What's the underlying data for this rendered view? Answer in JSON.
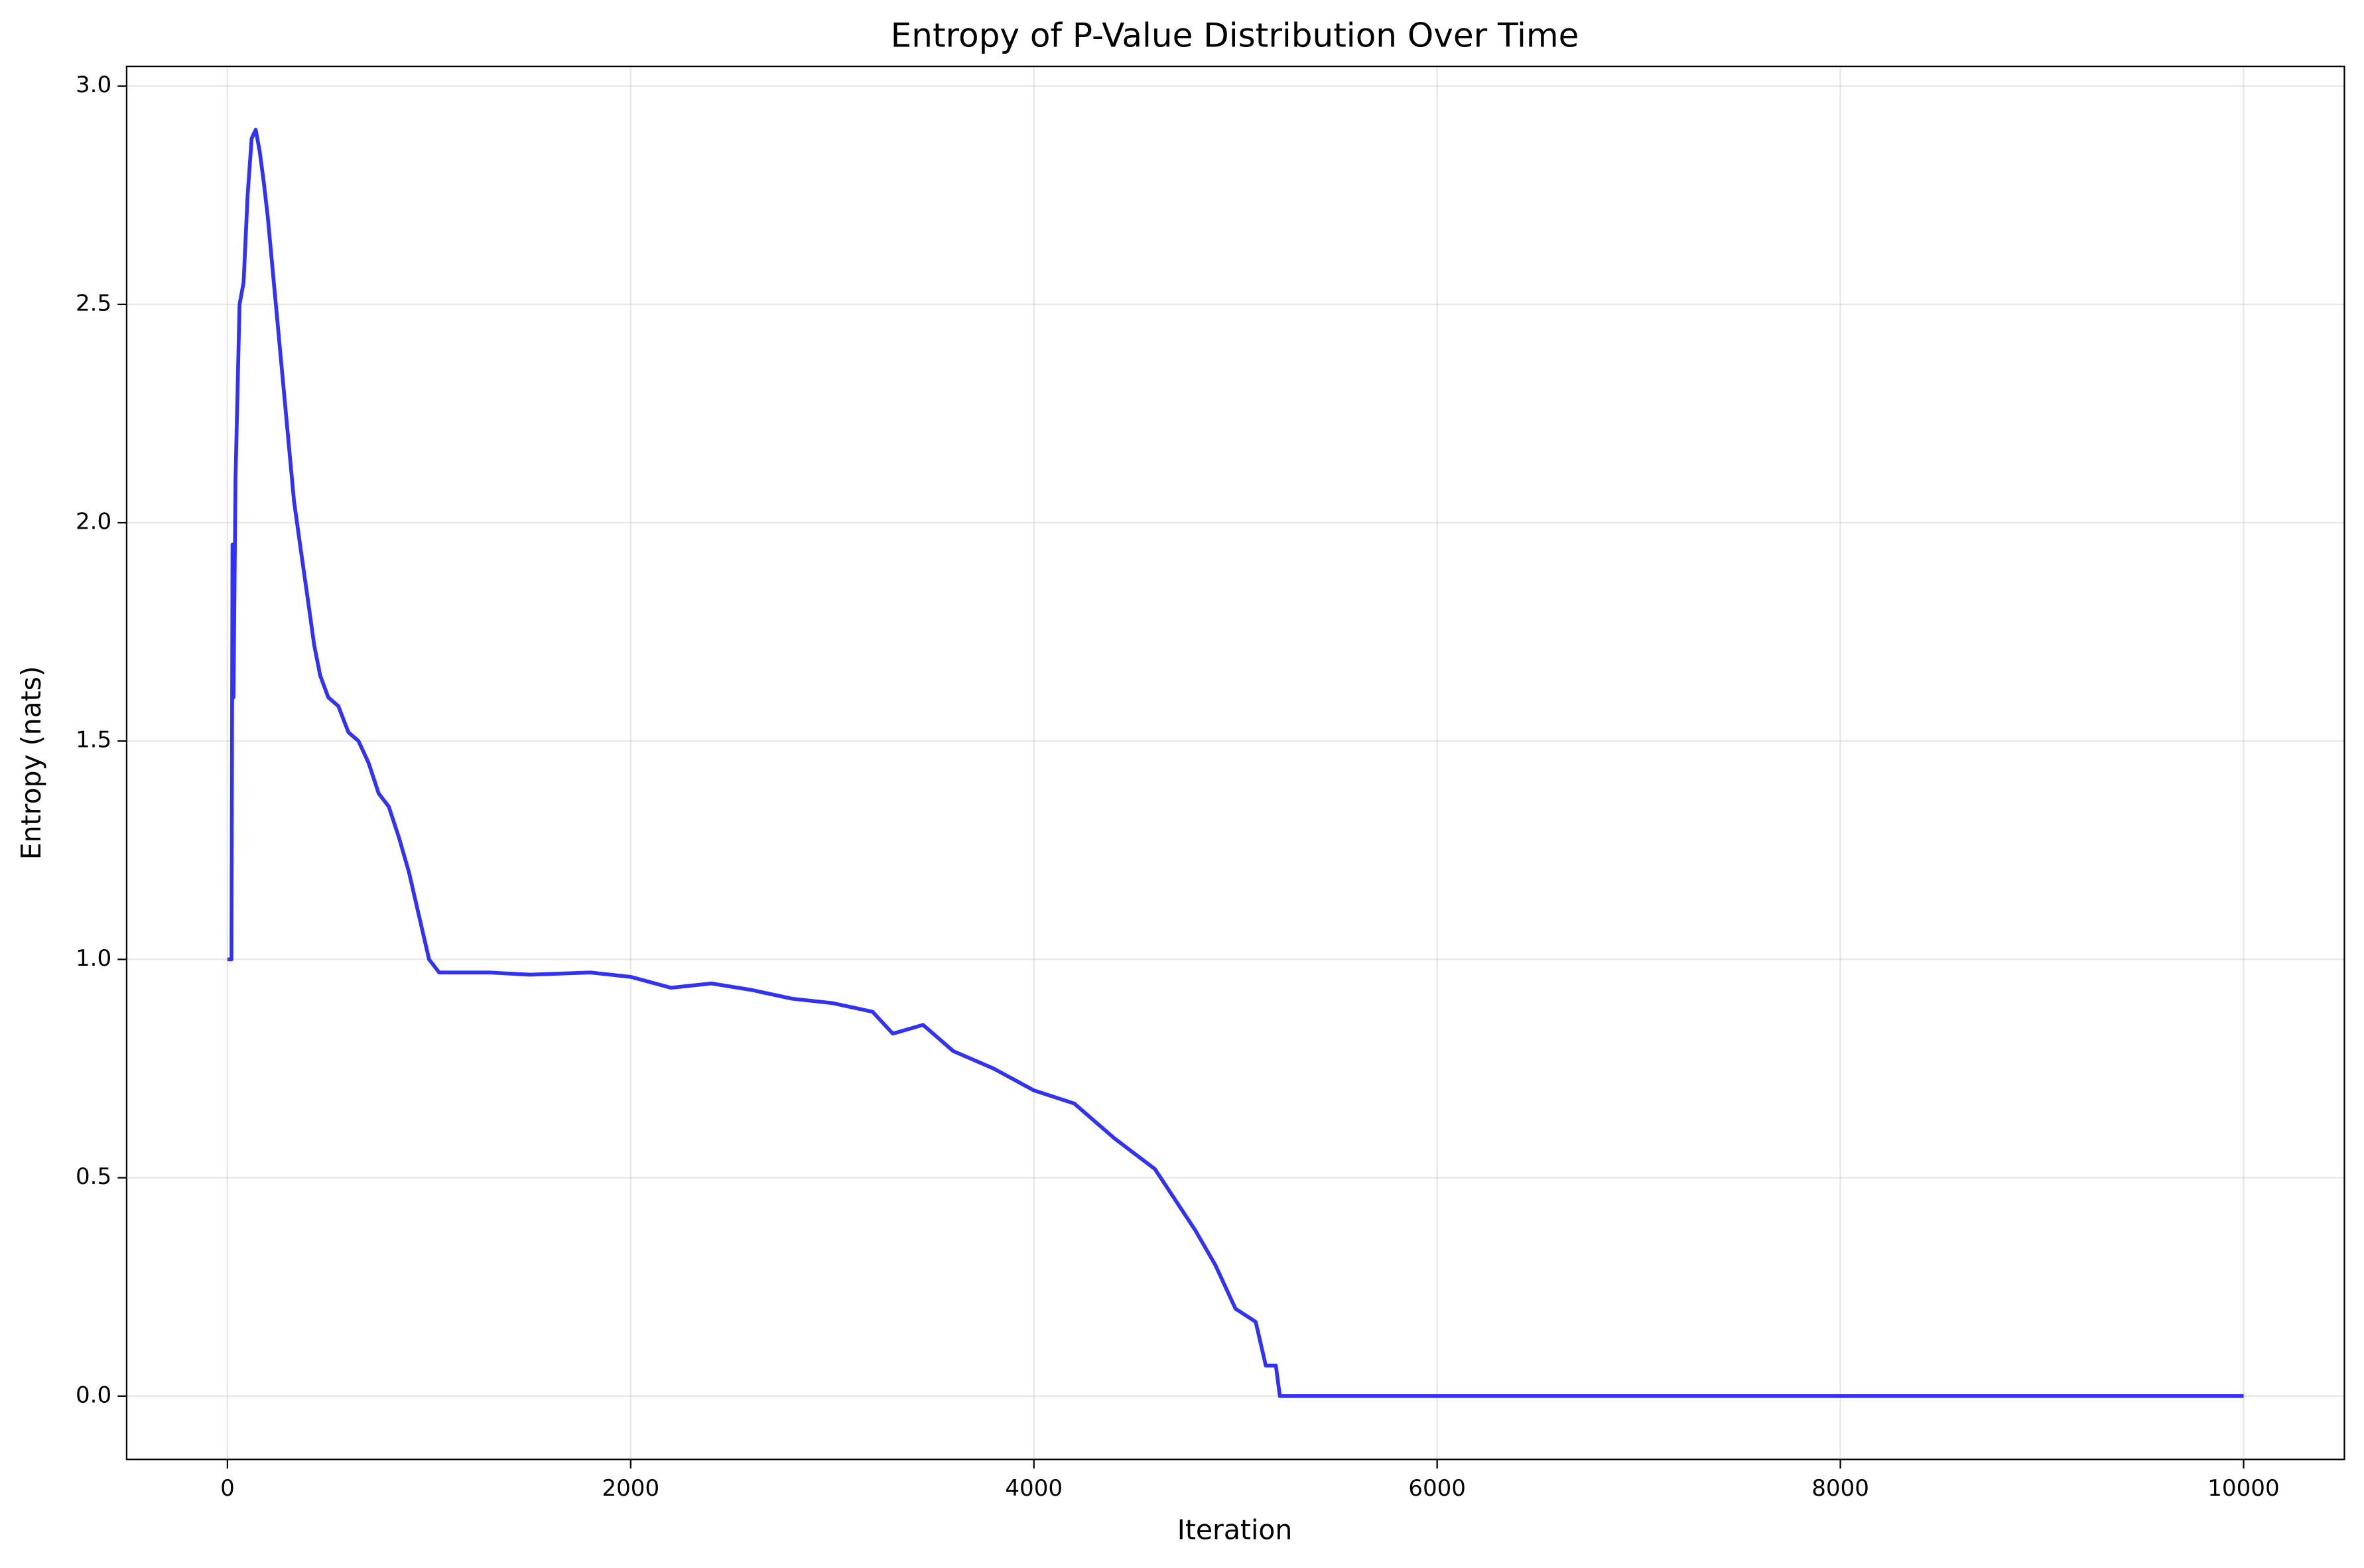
{
  "chart_data": {
    "type": "line",
    "title": "Entropy of P-Value Distribution Over Time",
    "x_label": "Iteration",
    "y_label": "Entropy (nats)",
    "x": [
      0,
      20,
      25,
      30,
      40,
      50,
      60,
      80,
      100,
      120,
      140,
      160,
      180,
      200,
      220,
      250,
      280,
      300,
      330,
      360,
      400,
      430,
      460,
      500,
      550,
      600,
      650,
      700,
      750,
      800,
      850,
      900,
      950,
      1000,
      1050,
      1080,
      1100,
      1300,
      1500,
      1800,
      2000,
      2200,
      2400,
      2600,
      2800,
      3000,
      3200,
      3300,
      3450,
      3600,
      3800,
      4000,
      4200,
      4400,
      4600,
      4700,
      4800,
      4900,
      5000,
      5100,
      5150,
      5200,
      5220,
      6000,
      8000,
      10000
    ],
    "values": [
      1.0,
      1.0,
      1.95,
      1.6,
      2.1,
      2.3,
      2.5,
      2.55,
      2.75,
      2.88,
      2.9,
      2.85,
      2.78,
      2.7,
      2.6,
      2.45,
      2.3,
      2.2,
      2.05,
      1.95,
      1.82,
      1.72,
      1.65,
      1.6,
      1.58,
      1.52,
      1.5,
      1.45,
      1.38,
      1.35,
      1.28,
      1.2,
      1.1,
      1.0,
      0.97,
      0.97,
      0.97,
      0.97,
      0.965,
      0.97,
      0.96,
      0.935,
      0.945,
      0.93,
      0.91,
      0.9,
      0.88,
      0.83,
      0.85,
      0.79,
      0.75,
      0.7,
      0.67,
      0.59,
      0.52,
      0.45,
      0.38,
      0.3,
      0.2,
      0.17,
      0.07,
      0.07,
      0,
      0,
      0,
      0
    ],
    "color": "#3232f4",
    "xlim": [
      -500,
      10500
    ],
    "ylim": [
      -0.145,
      3.045
    ],
    "xticks": [
      0,
      2000,
      4000,
      6000,
      8000,
      10000
    ],
    "yticks": [
      {
        "value": 0,
        "label": "0.0"
      },
      0.5,
      {
        "value": 1,
        "label": "1.0"
      },
      1.5,
      {
        "value": 2,
        "label": "2.0"
      },
      2.5,
      {
        "value": 3,
        "label": "3.0"
      }
    ],
    "grid": true
  }
}
